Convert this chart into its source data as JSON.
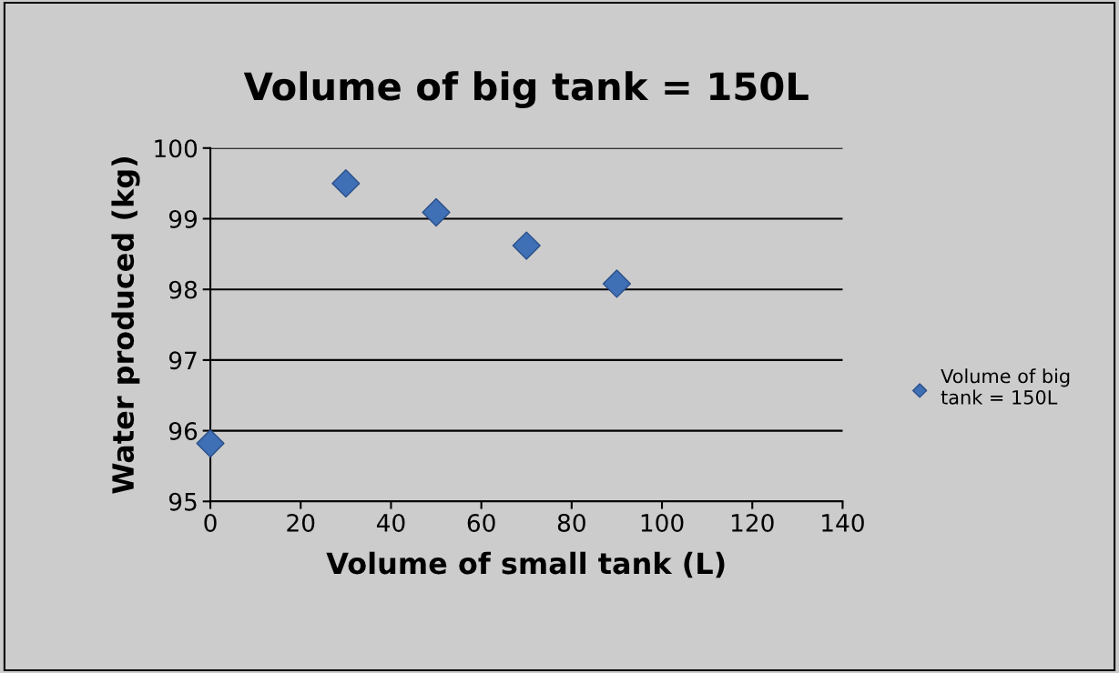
{
  "chart_data": {
    "type": "scatter",
    "title": "Volume of big tank = 150L",
    "xlabel": "Volume of small tank (L)",
    "ylabel": "Water produced (kg)",
    "x": [
      0,
      30,
      50,
      70,
      90
    ],
    "series": [
      {
        "name": "Volume of big tank = 150L",
        "color": "#3f6fb5",
        "values": [
          95.82,
          99.5,
          99.09,
          98.62,
          98.08
        ]
      }
    ],
    "xlim": [
      0,
      140
    ],
    "xticks": [
      0,
      20,
      40,
      60,
      80,
      100,
      120,
      140
    ],
    "ylim": [
      95,
      100
    ],
    "yticks": [
      95,
      96,
      97,
      98,
      99,
      100
    ],
    "grid": "y",
    "legend": "right",
    "marker": "diamond"
  }
}
